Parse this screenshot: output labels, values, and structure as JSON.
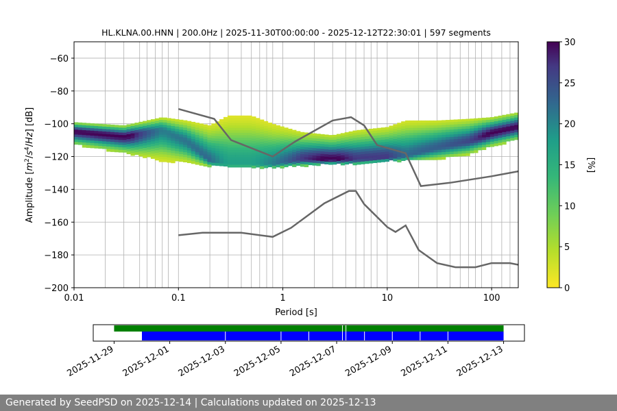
{
  "chart_data": [
    {
      "type": "heatmap",
      "title": "HL.KLNA.00.HNN | 200.0Hz | 2025-11-30T00:00:00 - 2025-12-12T22:30:01 | 597 segments",
      "xlabel": "Period [s]",
      "ylabel_parts": [
        "Amplitude [",
        "m",
        "2",
        "/",
        "s",
        "4",
        "/",
        "Hz",
        "] [dB]"
      ],
      "xscale": "log",
      "xlim": [
        0.01,
        180
      ],
      "ylim": [
        -200,
        -50
      ],
      "x_ticks": [
        {
          "value": 0.01,
          "label": "0.01"
        },
        {
          "value": 0.1,
          "label": "0.1"
        },
        {
          "value": 1,
          "label": "1"
        },
        {
          "value": 10,
          "label": "10"
        },
        {
          "value": 100,
          "label": "100"
        }
      ],
      "y_ticks": [
        {
          "value": -60,
          "label": "−60"
        },
        {
          "value": -80,
          "label": "−80"
        },
        {
          "value": -100,
          "label": "−100"
        },
        {
          "value": -120,
          "label": "−120"
        },
        {
          "value": -140,
          "label": "−140"
        },
        {
          "value": -160,
          "label": "−160"
        },
        {
          "value": -180,
          "label": "−180"
        },
        {
          "value": -200,
          "label": "−200"
        }
      ],
      "grid_periods": [
        0.0199,
        0.03,
        0.0425,
        0.05,
        0.06,
        0.07,
        0.08,
        0.1,
        0.2,
        0.3,
        0.4,
        0.5,
        0.6,
        0.7,
        0.8,
        1,
        2,
        3,
        4,
        5,
        6,
        7,
        8,
        10,
        20,
        30,
        40,
        50,
        60,
        70,
        80,
        100,
        125,
        150
      ],
      "grid": true,
      "colormap": "viridis_r",
      "colorbar": {
        "label": "[%]",
        "range": [
          0,
          30
        ],
        "ticks": [
          {
            "value": 0,
            "label": "0"
          },
          {
            "value": 5,
            "label": "5"
          },
          {
            "value": 10,
            "label": "10"
          },
          {
            "value": 15,
            "label": "15"
          },
          {
            "value": 20,
            "label": "20"
          },
          {
            "value": 25,
            "label": "25"
          },
          {
            "value": 30,
            "label": "30"
          }
        ]
      },
      "psd_mode": {
        "x": [
          0.01,
          0.03,
          0.07,
          0.12,
          0.2,
          0.3,
          0.5,
          0.8,
          1.5,
          3,
          5,
          10,
          15,
          30,
          60,
          100,
          180
        ],
        "y": [
          -104,
          -107,
          -103,
          -110,
          -122,
          -124,
          -124,
          -124,
          -121,
          -121,
          -121,
          -120,
          -119,
          -114,
          -110,
          -105,
          -101
        ]
      },
      "psd_spread": {
        "x": [
          0.01,
          0.03,
          0.07,
          0.12,
          0.2,
          0.3,
          0.5,
          0.8,
          1.5,
          3,
          5,
          10,
          15,
          30,
          60,
          100,
          180
        ],
        "upper": [
          -99,
          -101,
          -96,
          -98,
          -101,
          -95,
          -95,
          -100,
          -105,
          -107,
          -104,
          -102,
          -98,
          -98,
          -97,
          -96,
          -93
        ],
        "lower": [
          -112,
          -117,
          -122,
          -123,
          -125,
          -126,
          -126,
          -126,
          -125,
          -124,
          -124,
          -122,
          -122,
          -121,
          -118,
          -113,
          -109
        ]
      },
      "series": [
        {
          "name": "",
          "color": "#666666",
          "x": [
            0.1,
            0.22,
            0.32,
            0.8,
            1.3,
            3,
            4.5,
            6,
            8,
            15,
            21,
            40,
            100,
            180
          ],
          "y": [
            -91,
            -97,
            -110,
            -120,
            -111,
            -98,
            -96,
            -101,
            -113,
            -118,
            -138,
            -136,
            -132,
            -129
          ]
        },
        {
          "name": "",
          "color": "#666666",
          "x": [
            0.1,
            0.17,
            0.4,
            0.8,
            1.2,
            2.5,
            4.3,
            5,
            6,
            10,
            12,
            15,
            20,
            30,
            45,
            70,
            100,
            150,
            180
          ],
          "y": [
            -168,
            -166.5,
            -166.5,
            -169,
            -163.5,
            -148.5,
            -141,
            -141,
            -149,
            -163,
            -166,
            -162,
            -177,
            -185,
            -187.5,
            -187.5,
            -185,
            -185,
            -186
          ]
        }
      ]
    },
    {
      "type": "timeline",
      "date_ticks": [
        "2025-11-29",
        "2025-12-01",
        "2025-12-03",
        "2025-12-05",
        "2025-12-07",
        "2025-12-09",
        "2025-12-11",
        "2025-12-13"
      ],
      "range": [
        "2025-11-28T06:00:00",
        "2025-12-13T18:00:00"
      ],
      "data_availability": {
        "start": "2025-11-29T00:00:00",
        "end": "2025-12-13T00:00:00",
        "color": "#008000",
        "gaps": [
          "2025-12-07T05:00:00",
          "2025-12-07T08:00:00"
        ]
      },
      "psd_segments": {
        "start": "2025-11-30T00:00:00",
        "end": "2025-12-13T00:00:00",
        "color": "#0000ff",
        "gaps": [
          "2025-12-03T00:00:00",
          "2025-12-05T00:00:00",
          "2025-12-06T00:00:00",
          "2025-12-07T05:00:00",
          "2025-12-07T08:00:00",
          "2025-12-08T00:00:00",
          "2025-12-09T00:00:00",
          "2025-12-10T00:00:00",
          "2025-12-11T00:00:00"
        ]
      }
    }
  ],
  "footer": {
    "text": "Generated by SeedPSD on 2025-12-14 | Calculations updated on 2025-12-13"
  }
}
